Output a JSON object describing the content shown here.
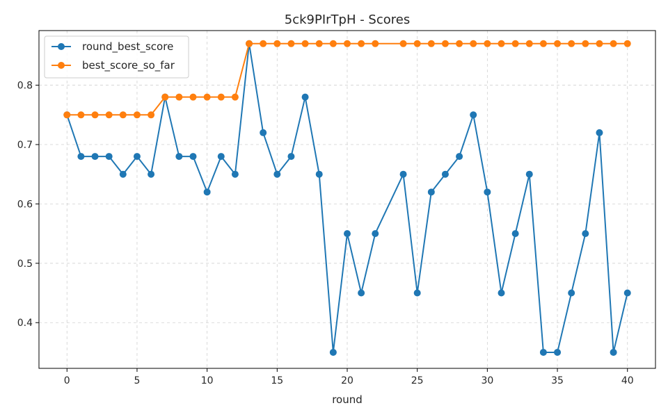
{
  "chart_data": {
    "type": "line",
    "title": "5ck9PIrTpH - Scores",
    "xlabel": "round",
    "ylabel": "",
    "xlim": [
      -2,
      42
    ],
    "ylim": [
      0.323,
      0.892
    ],
    "xticks": [
      0,
      5,
      10,
      15,
      20,
      25,
      30,
      35,
      40
    ],
    "yticks": [
      0.4,
      0.5,
      0.6,
      0.7,
      0.8
    ],
    "grid": true,
    "legend_position": "top-left",
    "x": [
      0,
      1,
      2,
      3,
      4,
      5,
      6,
      7,
      8,
      9,
      10,
      11,
      12,
      13,
      14,
      15,
      16,
      17,
      18,
      19,
      20,
      21,
      22,
      24,
      25,
      26,
      27,
      28,
      29,
      30,
      31,
      32,
      33,
      34,
      35,
      36,
      37,
      38,
      39,
      40
    ],
    "series": [
      {
        "name": "round_best_score",
        "color": "#1f77b4",
        "values": [
          0.75,
          0.68,
          0.68,
          0.68,
          0.65,
          0.68,
          0.65,
          0.78,
          0.68,
          0.68,
          0.62,
          0.68,
          0.65,
          0.87,
          0.72,
          0.65,
          0.68,
          0.78,
          0.65,
          0.35,
          0.55,
          0.45,
          0.55,
          0.65,
          0.45,
          0.62,
          0.65,
          0.68,
          0.75,
          0.62,
          0.45,
          0.55,
          0.65,
          0.35,
          0.35,
          0.45,
          0.55,
          0.72,
          0.35,
          0.45
        ]
      },
      {
        "name": "best_score_so_far",
        "color": "#ff7f0e",
        "values": [
          0.75,
          0.75,
          0.75,
          0.75,
          0.75,
          0.75,
          0.75,
          0.78,
          0.78,
          0.78,
          0.78,
          0.78,
          0.78,
          0.87,
          0.87,
          0.87,
          0.87,
          0.87,
          0.87,
          0.87,
          0.87,
          0.87,
          0.87,
          0.87,
          0.87,
          0.87,
          0.87,
          0.87,
          0.87,
          0.87,
          0.87,
          0.87,
          0.87,
          0.87,
          0.87,
          0.87,
          0.87,
          0.87,
          0.87,
          0.87
        ]
      }
    ]
  }
}
